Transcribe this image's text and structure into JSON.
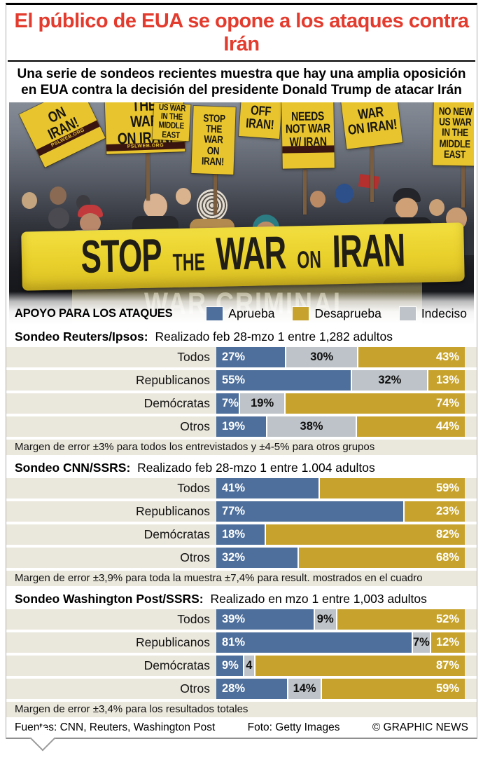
{
  "colors": {
    "approve": "#4e6f9b",
    "disapprove": "#c7a32e",
    "undecided": "#bdc3c8",
    "title_red": "#e33b2d",
    "row_band_beige": "#eae7dc",
    "sign_yellow": "#e8c52f",
    "banner_yellow": "#e9d02b"
  },
  "header": {
    "title": "El público de EUA se opone a los ataques contra Irán",
    "subtitle_line1": "Una serie de sondeos recientes muestra que hay una amplia oposición",
    "subtitle_line2": "en EUA contra la decisión del presidente Donald Trump de atacar Irán"
  },
  "photo": {
    "banner_words": [
      "STOP",
      "THE",
      "WAR",
      "ON",
      "IRAN"
    ],
    "banner_back_text": "WAR CRIMINAL",
    "signs": [
      {
        "text": "ON\nIRAN!",
        "strip": "PSLWEB.ORG"
      },
      {
        "text": "THE\nWAR\nON IRAN!",
        "strip": "PSLWEB.ORG"
      },
      {
        "text": "STOP\nTHE\nWAR\nON\nIRAN!"
      },
      {
        "text": "US WAR\nIN THE\nMIDDLE EAST"
      },
      {
        "text": "OFF\nIRAN!"
      },
      {
        "text": "NEEDS\nNOT WAR\nW/ IRAN",
        "strip": ""
      },
      {
        "text": "WAR\nON IRAN!"
      },
      {
        "text": "NO NEW\nUS WAR\nIN THE\nMIDDLE EAST"
      }
    ]
  },
  "legend": {
    "heading": "APOYO PARA LOS ATAQUES",
    "items": [
      {
        "label": "Aprueba",
        "color": "#4e6f9b"
      },
      {
        "label": "Desaprueba",
        "color": "#c7a32e"
      },
      {
        "label": "Indeciso",
        "color": "#bdc3c8"
      }
    ]
  },
  "polls": [
    {
      "name": "Sondeo Reuters/Ipsos:",
      "info": "Realizado feb 28-mzo 1 entre 1,282 adultos",
      "note": "Margen de error ±3% para todos los entrevistados y ±4-5% para otros grupos",
      "rows": [
        {
          "label": "Todos",
          "segments": [
            {
              "kind": "approve",
              "label": "27%",
              "value": 27
            },
            {
              "kind": "undecided",
              "label": "30%",
              "value": 30
            },
            {
              "kind": "disapprove",
              "label": "43%",
              "value": 43
            }
          ]
        },
        {
          "label": "Republicanos",
          "segments": [
            {
              "kind": "approve",
              "label": "55%",
              "value": 55
            },
            {
              "kind": "undecided",
              "label": "32%",
              "value": 32
            },
            {
              "kind": "disapprove",
              "label": "13%",
              "value": 13
            }
          ]
        },
        {
          "label": "Demócratas",
          "segments": [
            {
              "kind": "approve",
              "label": "7%",
              "value": 7
            },
            {
              "kind": "undecided",
              "label": "19%",
              "value": 19
            },
            {
              "kind": "disapprove",
              "label": "74%",
              "value": 74
            }
          ]
        },
        {
          "label": "Otros",
          "segments": [
            {
              "kind": "approve",
              "label": "19%",
              "value": 19
            },
            {
              "kind": "undecided",
              "label": "38%",
              "value": 38
            },
            {
              "kind": "disapprove",
              "label": "44%",
              "value": 44
            }
          ]
        }
      ]
    },
    {
      "name": "Sondeo CNN/SSRS:",
      "info": "Realizado feb 28-mzo 1 entre 1.004 adultos",
      "note": "Margen de error ±3,9% para toda la muestra ±7,4% para result. mostrados en el cuadro",
      "rows": [
        {
          "label": "Todos",
          "segments": [
            {
              "kind": "approve",
              "label": "41%",
              "value": 41
            },
            {
              "kind": "disapprove",
              "label": "59%",
              "value": 59
            }
          ]
        },
        {
          "label": "Republicanos",
          "segments": [
            {
              "kind": "approve",
              "label": "77%",
              "value": 77
            },
            {
              "kind": "disapprove",
              "label": "23%",
              "value": 23
            }
          ]
        },
        {
          "label": "Demócratas",
          "segments": [
            {
              "kind": "approve",
              "label": "18%",
              "value": 18
            },
            {
              "kind": "disapprove",
              "label": "82%",
              "value": 82
            }
          ]
        },
        {
          "label": "Otros",
          "segments": [
            {
              "kind": "approve",
              "label": "32%",
              "value": 32
            },
            {
              "kind": "disapprove",
              "label": "68%",
              "value": 68
            }
          ]
        }
      ]
    },
    {
      "name": "Sondeo Washington Post/SSRS:",
      "info": "Realizado en mzo 1 entre 1,003 adultos",
      "note": "Margen de error ±3,4% para los resultados totales",
      "rows": [
        {
          "label": "Todos",
          "segments": [
            {
              "kind": "approve",
              "label": "39%",
              "value": 39
            },
            {
              "kind": "undecided",
              "label": "9%",
              "value": 9
            },
            {
              "kind": "disapprove",
              "label": "52%",
              "value": 52
            }
          ]
        },
        {
          "label": "Republicanos",
          "segments": [
            {
              "kind": "approve",
              "label": "81%",
              "value": 81
            },
            {
              "kind": "undecided",
              "label": "7%",
              "value": 7
            },
            {
              "kind": "disapprove",
              "label": "12%",
              "value": 12
            }
          ]
        },
        {
          "label": "Demócratas",
          "segments": [
            {
              "kind": "approve",
              "label": "9%",
              "value": 9
            },
            {
              "kind": "undecided",
              "label": "4",
              "value": 4
            },
            {
              "kind": "disapprove",
              "label": "87%",
              "value": 87
            }
          ]
        },
        {
          "label": "Otros",
          "segments": [
            {
              "kind": "approve",
              "label": "28%",
              "value": 28
            },
            {
              "kind": "undecided",
              "label": "14%",
              "value": 14
            },
            {
              "kind": "disapprove",
              "label": "59%",
              "value": 59
            }
          ]
        }
      ]
    }
  ],
  "footer": {
    "sources": "Fuentes: CNN, Reuters, Washington Post",
    "photo_credit": "Foto: Getty Images",
    "copyright": "© GRAPHIC NEWS"
  },
  "chart_data": [
    {
      "type": "bar",
      "orientation": "horizontal-stacked",
      "title": "Sondeo Reuters/Ipsos",
      "subtitle": "Realizado feb 28-mzo 1 entre 1,282 adultos",
      "categories": [
        "Todos",
        "Republicanos",
        "Demócratas",
        "Otros"
      ],
      "series": [
        {
          "name": "Aprueba",
          "values": [
            27,
            55,
            7,
            19
          ]
        },
        {
          "name": "Indeciso",
          "values": [
            30,
            32,
            19,
            38
          ]
        },
        {
          "name": "Desaprueba",
          "values": [
            43,
            13,
            74,
            44
          ]
        }
      ],
      "xlim": [
        0,
        100
      ],
      "note": "Margen de error ±3% para todos los entrevistados y ±4-5% para otros grupos",
      "legend_position": "top"
    },
    {
      "type": "bar",
      "orientation": "horizontal-stacked",
      "title": "Sondeo CNN/SSRS",
      "subtitle": "Realizado feb 28-mzo 1 entre 1.004 adultos",
      "categories": [
        "Todos",
        "Republicanos",
        "Demócratas",
        "Otros"
      ],
      "series": [
        {
          "name": "Aprueba",
          "values": [
            41,
            77,
            18,
            32
          ]
        },
        {
          "name": "Desaprueba",
          "values": [
            59,
            23,
            82,
            68
          ]
        }
      ],
      "xlim": [
        0,
        100
      ],
      "note": "Margen de error ±3,9% para toda la muestra ±7,4% para result. mostrados en el cuadro",
      "legend_position": "top"
    },
    {
      "type": "bar",
      "orientation": "horizontal-stacked",
      "title": "Sondeo Washington Post/SSRS",
      "subtitle": "Realizado en mzo 1 entre 1,003 adultos",
      "categories": [
        "Todos",
        "Republicanos",
        "Demócratas",
        "Otros"
      ],
      "series": [
        {
          "name": "Aprueba",
          "values": [
            39,
            81,
            9,
            28
          ]
        },
        {
          "name": "Indeciso",
          "values": [
            9,
            7,
            4,
            14
          ]
        },
        {
          "name": "Desaprueba",
          "values": [
            52,
            12,
            87,
            59
          ]
        }
      ],
      "xlim": [
        0,
        100
      ],
      "note": "Margen de error ±3,4% para los resultados totales",
      "legend_position": "top"
    }
  ]
}
